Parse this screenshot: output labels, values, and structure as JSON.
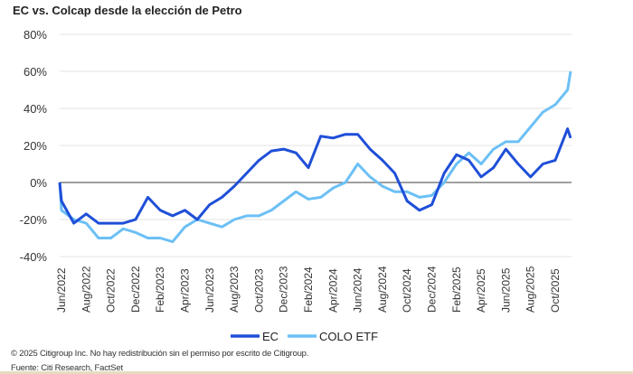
{
  "chart_data": {
    "type": "line",
    "title": "EC vs. Colcap desde la elección de Petro",
    "xlabel": "",
    "ylabel": "",
    "ylim": [
      -40,
      80
    ],
    "yticks": [
      -40,
      -20,
      0,
      20,
      40,
      60,
      80
    ],
    "ytick_format": "%",
    "xtick_labels": [
      "Jun/2022",
      "Aug/2022",
      "Oct/2022",
      "Dec/2022",
      "Feb/2023",
      "Apr/2023",
      "Jun/2023",
      "Aug/2023",
      "Oct/2023",
      "Dec/2023",
      "Feb/2024",
      "Apr/2024",
      "Jun/2024",
      "Aug/2024",
      "Oct/2024",
      "Dec/2024",
      "Feb/2025",
      "Apr/2025",
      "Jun/2025",
      "Aug/2025",
      "Oct/2025"
    ],
    "grid": "horizontal",
    "legend": "bottom",
    "x": [
      "2022-06",
      "2022-07",
      "2022-08",
      "2022-09",
      "2022-10",
      "2022-11",
      "2022-12",
      "2023-01",
      "2023-02",
      "2023-03",
      "2023-04",
      "2023-05",
      "2023-06",
      "2023-07",
      "2023-08",
      "2023-09",
      "2023-10",
      "2023-11",
      "2023-12",
      "2024-01",
      "2024-02",
      "2024-03",
      "2024-04",
      "2024-05",
      "2024-06",
      "2024-07",
      "2024-08",
      "2024-09",
      "2024-10",
      "2024-11",
      "2024-12",
      "2025-01",
      "2025-02",
      "2025-03",
      "2025-04",
      "2025-05",
      "2025-06",
      "2025-07",
      "2025-08",
      "2025-09",
      "2025-10",
      "2025-11",
      "2025-12"
    ],
    "series": [
      {
        "name": "EC",
        "color": "#1f4fd8",
        "values": [
          -10,
          -22,
          -17,
          -22,
          -22,
          -22,
          -20,
          -8,
          -15,
          -18,
          -15,
          -20,
          -12,
          -8,
          -2,
          5,
          12,
          17,
          18,
          16,
          8,
          25,
          24,
          26,
          26,
          18,
          12,
          5,
          -10,
          -15,
          -12,
          5,
          15,
          12,
          3,
          8,
          18,
          10,
          3,
          10,
          12,
          29,
          24
        ]
      },
      {
        "name": "COLO ETF",
        "color": "#6cc0f5",
        "values": [
          -15,
          -20,
          -22,
          -30,
          -30,
          -25,
          -27,
          -30,
          -30,
          -32,
          -24,
          -20,
          -22,
          -24,
          -20,
          -18,
          -18,
          -15,
          -10,
          -5,
          -9,
          -8,
          -3,
          0,
          10,
          3,
          -2,
          -5,
          -5,
          -8,
          -7,
          0,
          10,
          16,
          10,
          18,
          22,
          22,
          30,
          38,
          42,
          50,
          60
        ]
      }
    ]
  },
  "footer": {
    "copyright": "© 2025 Citigroup Inc. No hay redistribución sin el permiso por escrito de Citigroup.",
    "source": "Fuente: Citi Research, FactSet"
  }
}
